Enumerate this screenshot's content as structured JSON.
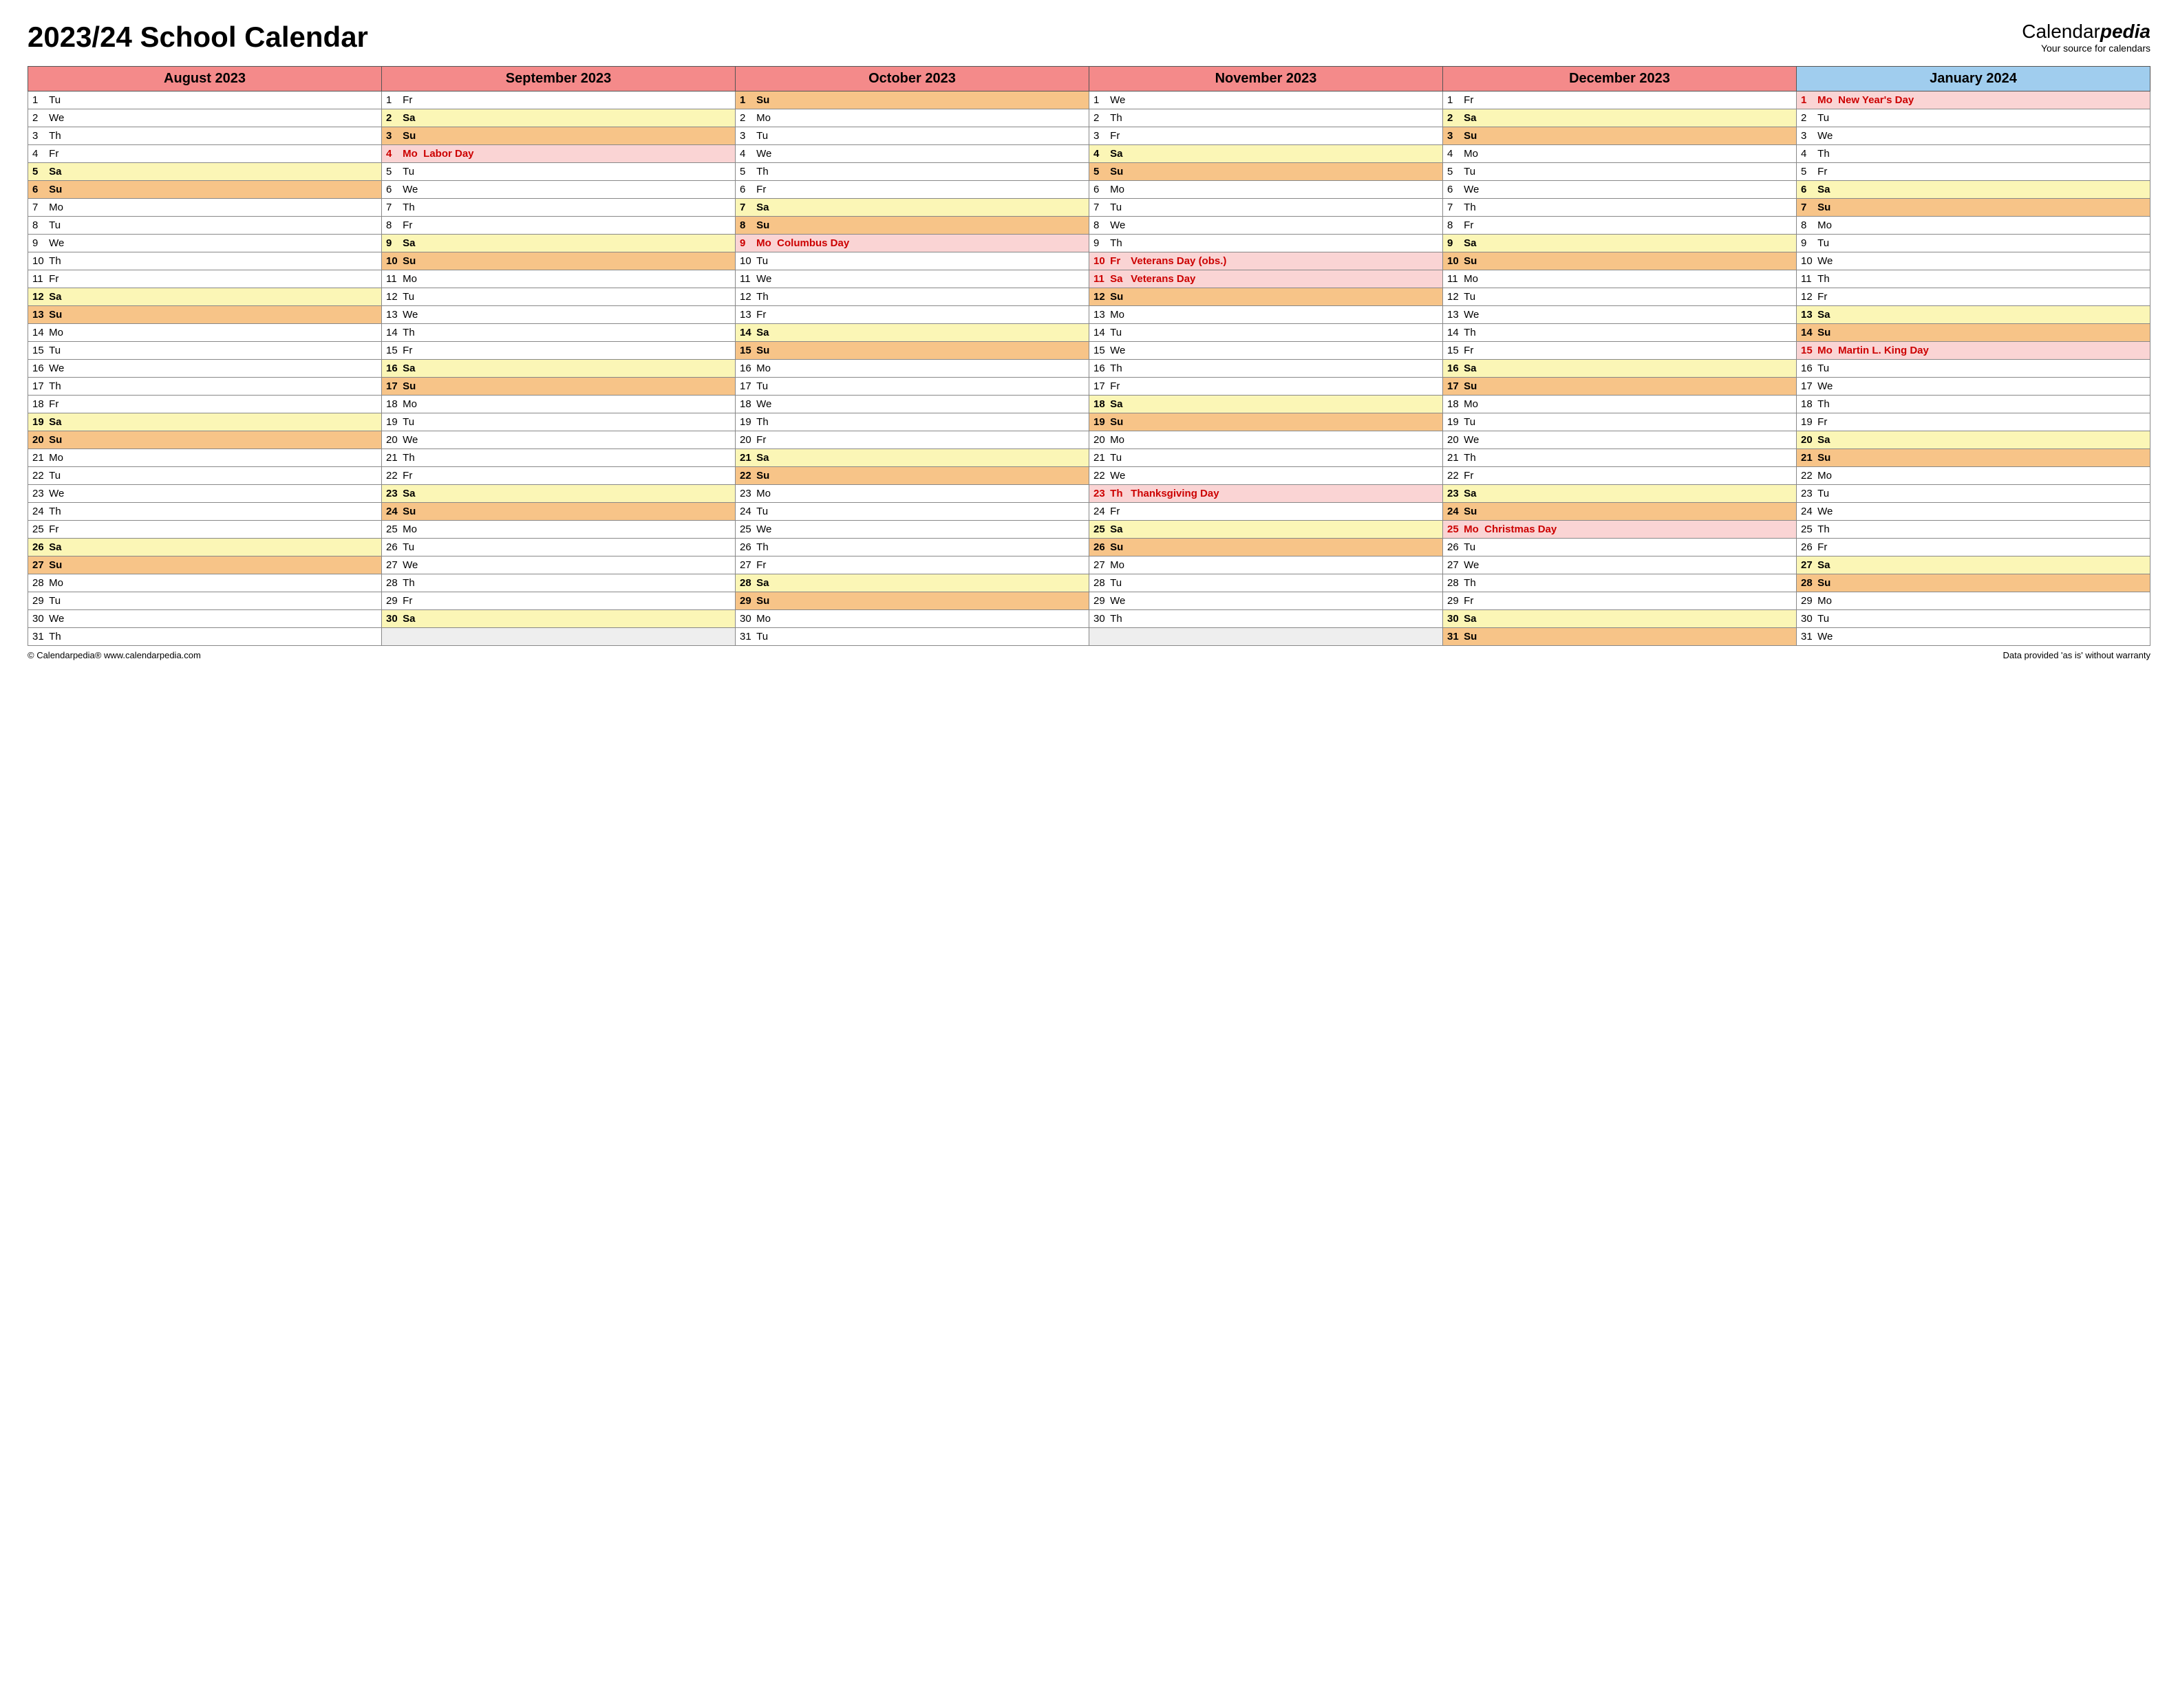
{
  "title": "2023/24 School Calendar",
  "brand": {
    "part1": "Calendar",
    "part2": "pedia",
    "tagline": "Your source for calendars"
  },
  "footer_left": "© Calendarpedia®   www.calendarpedia.com",
  "footer_right": "Data provided 'as is' without warranty",
  "header_colors": {
    "red": "#f48a8a",
    "blue": "#a0cdee"
  },
  "day_colors": {
    "weekday": "#ffffff",
    "saturday": "#fbf6b6",
    "sunday": "#f7c488",
    "holiday": "#fad4d4",
    "blank": "#eeeeee"
  },
  "months": [
    {
      "name": "August 2023",
      "header_color": "red",
      "days": [
        {
          "n": 1,
          "d": "Tu"
        },
        {
          "n": 2,
          "d": "We"
        },
        {
          "n": 3,
          "d": "Th"
        },
        {
          "n": 4,
          "d": "Fr"
        },
        {
          "n": 5,
          "d": "Sa",
          "t": "sat"
        },
        {
          "n": 6,
          "d": "Su",
          "t": "sun"
        },
        {
          "n": 7,
          "d": "Mo"
        },
        {
          "n": 8,
          "d": "Tu"
        },
        {
          "n": 9,
          "d": "We"
        },
        {
          "n": 10,
          "d": "Th"
        },
        {
          "n": 11,
          "d": "Fr"
        },
        {
          "n": 12,
          "d": "Sa",
          "t": "sat"
        },
        {
          "n": 13,
          "d": "Su",
          "t": "sun"
        },
        {
          "n": 14,
          "d": "Mo"
        },
        {
          "n": 15,
          "d": "Tu"
        },
        {
          "n": 16,
          "d": "We"
        },
        {
          "n": 17,
          "d": "Th"
        },
        {
          "n": 18,
          "d": "Fr"
        },
        {
          "n": 19,
          "d": "Sa",
          "t": "sat"
        },
        {
          "n": 20,
          "d": "Su",
          "t": "sun"
        },
        {
          "n": 21,
          "d": "Mo"
        },
        {
          "n": 22,
          "d": "Tu"
        },
        {
          "n": 23,
          "d": "We"
        },
        {
          "n": 24,
          "d": "Th"
        },
        {
          "n": 25,
          "d": "Fr"
        },
        {
          "n": 26,
          "d": "Sa",
          "t": "sat"
        },
        {
          "n": 27,
          "d": "Su",
          "t": "sun"
        },
        {
          "n": 28,
          "d": "Mo"
        },
        {
          "n": 29,
          "d": "Tu"
        },
        {
          "n": 30,
          "d": "We"
        },
        {
          "n": 31,
          "d": "Th"
        }
      ]
    },
    {
      "name": "September 2023",
      "header_color": "red",
      "days": [
        {
          "n": 1,
          "d": "Fr"
        },
        {
          "n": 2,
          "d": "Sa",
          "t": "sat"
        },
        {
          "n": 3,
          "d": "Su",
          "t": "sun"
        },
        {
          "n": 4,
          "d": "Mo",
          "t": "hol",
          "e": "Labor Day"
        },
        {
          "n": 5,
          "d": "Tu"
        },
        {
          "n": 6,
          "d": "We"
        },
        {
          "n": 7,
          "d": "Th"
        },
        {
          "n": 8,
          "d": "Fr"
        },
        {
          "n": 9,
          "d": "Sa",
          "t": "sat"
        },
        {
          "n": 10,
          "d": "Su",
          "t": "sun"
        },
        {
          "n": 11,
          "d": "Mo"
        },
        {
          "n": 12,
          "d": "Tu"
        },
        {
          "n": 13,
          "d": "We"
        },
        {
          "n": 14,
          "d": "Th"
        },
        {
          "n": 15,
          "d": "Fr"
        },
        {
          "n": 16,
          "d": "Sa",
          "t": "sat"
        },
        {
          "n": 17,
          "d": "Su",
          "t": "sun"
        },
        {
          "n": 18,
          "d": "Mo"
        },
        {
          "n": 19,
          "d": "Tu"
        },
        {
          "n": 20,
          "d": "We"
        },
        {
          "n": 21,
          "d": "Th"
        },
        {
          "n": 22,
          "d": "Fr"
        },
        {
          "n": 23,
          "d": "Sa",
          "t": "sat"
        },
        {
          "n": 24,
          "d": "Su",
          "t": "sun"
        },
        {
          "n": 25,
          "d": "Mo"
        },
        {
          "n": 26,
          "d": "Tu"
        },
        {
          "n": 27,
          "d": "We"
        },
        {
          "n": 28,
          "d": "Th"
        },
        {
          "n": 29,
          "d": "Fr"
        },
        {
          "n": 30,
          "d": "Sa",
          "t": "sat"
        }
      ]
    },
    {
      "name": "October 2023",
      "header_color": "red",
      "days": [
        {
          "n": 1,
          "d": "Su",
          "t": "sun"
        },
        {
          "n": 2,
          "d": "Mo"
        },
        {
          "n": 3,
          "d": "Tu"
        },
        {
          "n": 4,
          "d": "We"
        },
        {
          "n": 5,
          "d": "Th"
        },
        {
          "n": 6,
          "d": "Fr"
        },
        {
          "n": 7,
          "d": "Sa",
          "t": "sat"
        },
        {
          "n": 8,
          "d": "Su",
          "t": "sun"
        },
        {
          "n": 9,
          "d": "Mo",
          "t": "hol",
          "e": "Columbus Day"
        },
        {
          "n": 10,
          "d": "Tu"
        },
        {
          "n": 11,
          "d": "We"
        },
        {
          "n": 12,
          "d": "Th"
        },
        {
          "n": 13,
          "d": "Fr"
        },
        {
          "n": 14,
          "d": "Sa",
          "t": "sat"
        },
        {
          "n": 15,
          "d": "Su",
          "t": "sun"
        },
        {
          "n": 16,
          "d": "Mo"
        },
        {
          "n": 17,
          "d": "Tu"
        },
        {
          "n": 18,
          "d": "We"
        },
        {
          "n": 19,
          "d": "Th"
        },
        {
          "n": 20,
          "d": "Fr"
        },
        {
          "n": 21,
          "d": "Sa",
          "t": "sat"
        },
        {
          "n": 22,
          "d": "Su",
          "t": "sun"
        },
        {
          "n": 23,
          "d": "Mo"
        },
        {
          "n": 24,
          "d": "Tu"
        },
        {
          "n": 25,
          "d": "We"
        },
        {
          "n": 26,
          "d": "Th"
        },
        {
          "n": 27,
          "d": "Fr"
        },
        {
          "n": 28,
          "d": "Sa",
          "t": "sat"
        },
        {
          "n": 29,
          "d": "Su",
          "t": "sun"
        },
        {
          "n": 30,
          "d": "Mo"
        },
        {
          "n": 31,
          "d": "Tu"
        }
      ]
    },
    {
      "name": "November 2023",
      "header_color": "red",
      "days": [
        {
          "n": 1,
          "d": "We"
        },
        {
          "n": 2,
          "d": "Th"
        },
        {
          "n": 3,
          "d": "Fr"
        },
        {
          "n": 4,
          "d": "Sa",
          "t": "sat"
        },
        {
          "n": 5,
          "d": "Su",
          "t": "sun"
        },
        {
          "n": 6,
          "d": "Mo"
        },
        {
          "n": 7,
          "d": "Tu"
        },
        {
          "n": 8,
          "d": "We"
        },
        {
          "n": 9,
          "d": "Th"
        },
        {
          "n": 10,
          "d": "Fr",
          "t": "hol",
          "e": "Veterans Day (obs.)"
        },
        {
          "n": 11,
          "d": "Sa",
          "t": "hol",
          "e": "Veterans Day"
        },
        {
          "n": 12,
          "d": "Su",
          "t": "sun"
        },
        {
          "n": 13,
          "d": "Mo"
        },
        {
          "n": 14,
          "d": "Tu"
        },
        {
          "n": 15,
          "d": "We"
        },
        {
          "n": 16,
          "d": "Th"
        },
        {
          "n": 17,
          "d": "Fr"
        },
        {
          "n": 18,
          "d": "Sa",
          "t": "sat"
        },
        {
          "n": 19,
          "d": "Su",
          "t": "sun"
        },
        {
          "n": 20,
          "d": "Mo"
        },
        {
          "n": 21,
          "d": "Tu"
        },
        {
          "n": 22,
          "d": "We"
        },
        {
          "n": 23,
          "d": "Th",
          "t": "hol",
          "e": "Thanksgiving Day"
        },
        {
          "n": 24,
          "d": "Fr"
        },
        {
          "n": 25,
          "d": "Sa",
          "t": "sat"
        },
        {
          "n": 26,
          "d": "Su",
          "t": "sun"
        },
        {
          "n": 27,
          "d": "Mo"
        },
        {
          "n": 28,
          "d": "Tu"
        },
        {
          "n": 29,
          "d": "We"
        },
        {
          "n": 30,
          "d": "Th"
        }
      ]
    },
    {
      "name": "December 2023",
      "header_color": "red",
      "days": [
        {
          "n": 1,
          "d": "Fr"
        },
        {
          "n": 2,
          "d": "Sa",
          "t": "sat"
        },
        {
          "n": 3,
          "d": "Su",
          "t": "sun"
        },
        {
          "n": 4,
          "d": "Mo"
        },
        {
          "n": 5,
          "d": "Tu"
        },
        {
          "n": 6,
          "d": "We"
        },
        {
          "n": 7,
          "d": "Th"
        },
        {
          "n": 8,
          "d": "Fr"
        },
        {
          "n": 9,
          "d": "Sa",
          "t": "sat"
        },
        {
          "n": 10,
          "d": "Su",
          "t": "sun"
        },
        {
          "n": 11,
          "d": "Mo"
        },
        {
          "n": 12,
          "d": "Tu"
        },
        {
          "n": 13,
          "d": "We"
        },
        {
          "n": 14,
          "d": "Th"
        },
        {
          "n": 15,
          "d": "Fr"
        },
        {
          "n": 16,
          "d": "Sa",
          "t": "sat"
        },
        {
          "n": 17,
          "d": "Su",
          "t": "sun"
        },
        {
          "n": 18,
          "d": "Mo"
        },
        {
          "n": 19,
          "d": "Tu"
        },
        {
          "n": 20,
          "d": "We"
        },
        {
          "n": 21,
          "d": "Th"
        },
        {
          "n": 22,
          "d": "Fr"
        },
        {
          "n": 23,
          "d": "Sa",
          "t": "sat"
        },
        {
          "n": 24,
          "d": "Su",
          "t": "sun"
        },
        {
          "n": 25,
          "d": "Mo",
          "t": "hol",
          "e": "Christmas Day"
        },
        {
          "n": 26,
          "d": "Tu"
        },
        {
          "n": 27,
          "d": "We"
        },
        {
          "n": 28,
          "d": "Th"
        },
        {
          "n": 29,
          "d": "Fr"
        },
        {
          "n": 30,
          "d": "Sa",
          "t": "sat"
        },
        {
          "n": 31,
          "d": "Su",
          "t": "sun"
        }
      ]
    },
    {
      "name": "January 2024",
      "header_color": "blue",
      "days": [
        {
          "n": 1,
          "d": "Mo",
          "t": "hol",
          "e": "New Year's Day"
        },
        {
          "n": 2,
          "d": "Tu"
        },
        {
          "n": 3,
          "d": "We"
        },
        {
          "n": 4,
          "d": "Th"
        },
        {
          "n": 5,
          "d": "Fr"
        },
        {
          "n": 6,
          "d": "Sa",
          "t": "sat"
        },
        {
          "n": 7,
          "d": "Su",
          "t": "sun"
        },
        {
          "n": 8,
          "d": "Mo"
        },
        {
          "n": 9,
          "d": "Tu"
        },
        {
          "n": 10,
          "d": "We"
        },
        {
          "n": 11,
          "d": "Th"
        },
        {
          "n": 12,
          "d": "Fr"
        },
        {
          "n": 13,
          "d": "Sa",
          "t": "sat"
        },
        {
          "n": 14,
          "d": "Su",
          "t": "sun"
        },
        {
          "n": 15,
          "d": "Mo",
          "t": "hol",
          "e": "Martin L. King Day"
        },
        {
          "n": 16,
          "d": "Tu"
        },
        {
          "n": 17,
          "d": "We"
        },
        {
          "n": 18,
          "d": "Th"
        },
        {
          "n": 19,
          "d": "Fr"
        },
        {
          "n": 20,
          "d": "Sa",
          "t": "sat"
        },
        {
          "n": 21,
          "d": "Su",
          "t": "sun"
        },
        {
          "n": 22,
          "d": "Mo"
        },
        {
          "n": 23,
          "d": "Tu"
        },
        {
          "n": 24,
          "d": "We"
        },
        {
          "n": 25,
          "d": "Th"
        },
        {
          "n": 26,
          "d": "Fr"
        },
        {
          "n": 27,
          "d": "Sa",
          "t": "sat"
        },
        {
          "n": 28,
          "d": "Su",
          "t": "sun"
        },
        {
          "n": 29,
          "d": "Mo"
        },
        {
          "n": 30,
          "d": "Tu"
        },
        {
          "n": 31,
          "d": "We"
        }
      ]
    }
  ]
}
